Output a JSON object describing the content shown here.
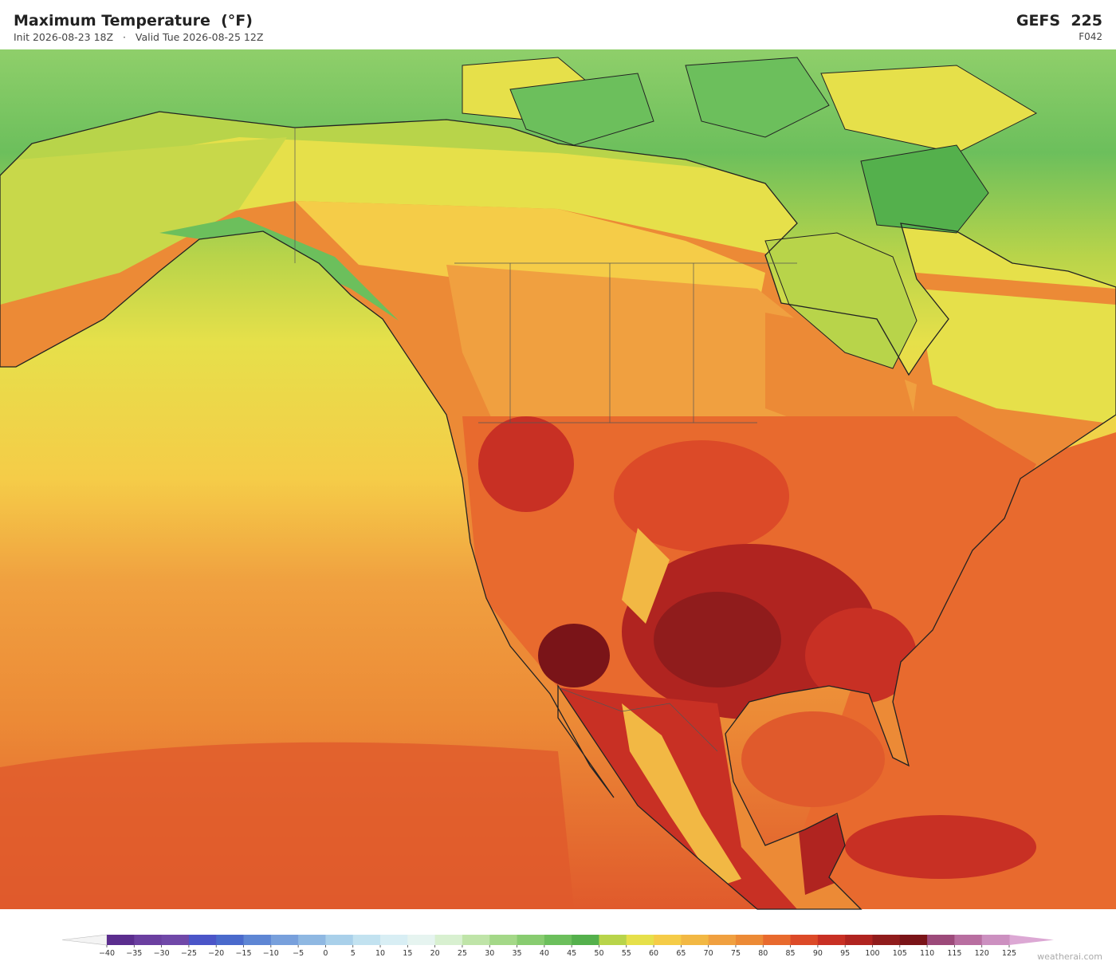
{
  "header": {
    "title": "Maximum Temperature  (°F)",
    "init": "Init 2026-08-23 18Z",
    "separator": "·",
    "valid": "Valid Tue 2026-08-25 12Z",
    "model": "GEFS  225",
    "forecast_hour": "F042"
  },
  "colorbar": {
    "ticks": [
      {
        "value": -40,
        "label": "−40"
      },
      {
        "value": -35,
        "label": "−35"
      },
      {
        "value": -30,
        "label": "−30"
      },
      {
        "value": -25,
        "label": "−25"
      },
      {
        "value": -20,
        "label": "−20"
      },
      {
        "value": -15,
        "label": "−15"
      },
      {
        "value": -10,
        "label": "−10"
      },
      {
        "value": -5,
        "label": "−5"
      },
      0,
      5,
      10,
      15,
      20,
      25,
      30,
      35,
      40,
      45,
      50,
      55,
      60,
      65,
      70,
      75,
      80,
      85,
      90,
      95,
      100,
      105,
      110,
      115,
      120,
      125
    ],
    "colors": [
      "#5b2d8e",
      "#6b3fa0",
      "#7048a8",
      "#4b55c8",
      "#4a6acc",
      "#5e86d4",
      "#78a0dc",
      "#8fb8e2",
      "#a9d0ea",
      "#c2e2f0",
      "#d8eef4",
      "#e6f4f0",
      "#d8f0d0",
      "#bfe4a8",
      "#a4d888",
      "#88cc70",
      "#6cbf5c",
      "#54b04c",
      "#b8d44a",
      "#e6e04a",
      "#f5cc48",
      "#f2b844",
      "#f0a040",
      "#ec8a36",
      "#e86a2e",
      "#dc4a28",
      "#c83024",
      "#b02420",
      "#901c1c",
      "#7a1418",
      "#9c4a7a",
      "#b86ea0",
      "#cc90c0"
    ],
    "under_color": "#f4f4f4",
    "over_color": "#dca8d4"
  },
  "watermark": "weatherai.com"
}
